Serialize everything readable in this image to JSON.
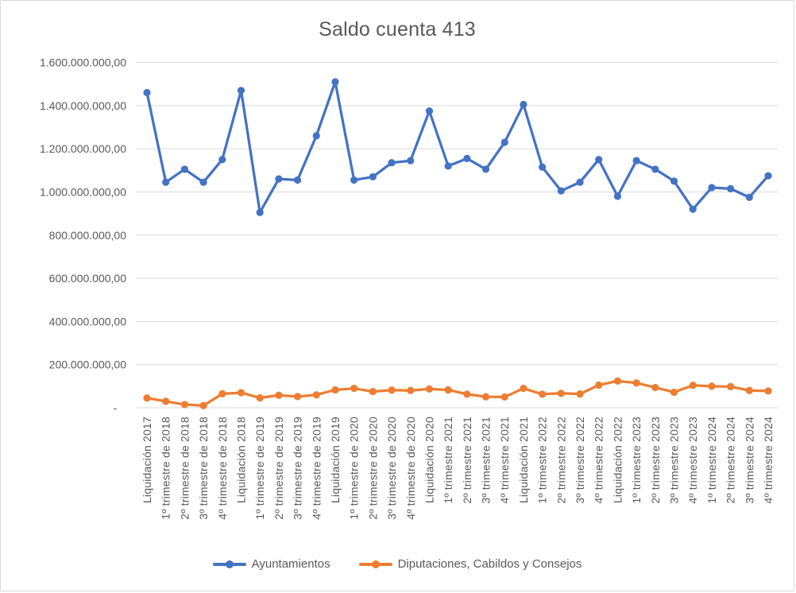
{
  "chart_data": {
    "type": "line",
    "title": "Saldo cuenta 413",
    "xlabel": "",
    "ylabel": "",
    "grid": true,
    "legend_position": "bottom",
    "x_label_rotation": 90,
    "ylim": [
      0,
      1600000000
    ],
    "y_ticks": [
      {
        "value": 0,
        "label": "-   "
      },
      {
        "value": 200000000,
        "label": "200.000.000,00"
      },
      {
        "value": 400000000,
        "label": "400.000.000,00"
      },
      {
        "value": 600000000,
        "label": "600.000.000,00"
      },
      {
        "value": 800000000,
        "label": "800.000.000,00"
      },
      {
        "value": 1000000000,
        "label": "1.000.000.000,00"
      },
      {
        "value": 1200000000,
        "label": "1.200.000.000,00"
      },
      {
        "value": 1400000000,
        "label": "1.400.000.000,00"
      },
      {
        "value": 1600000000,
        "label": "1.600.000.000,00"
      }
    ],
    "categories": [
      "Liquidación 2017",
      "1º trimestre de 2018",
      "2º trimestre de 2018",
      "3º trimestre de 2018",
      "4º trimestre de 2018",
      "Liquidación 2018",
      "1º trimestre de 2019",
      "2º trimestre de 2019",
      "3º trimestre de 2019",
      "4º trimestre de 2019",
      "Liquidación 2019",
      "1º trimestre de 2020",
      "2º trimestre de 2020",
      "3º trimestre de 2020",
      "4º trimestre de 2020",
      "Liquidación 2020",
      "1º trimestre 2021",
      "2º trimestre 2021",
      "3º trimestre 2021",
      "4º trimestre 2021",
      "Liquidación 2021",
      "1º trimestre 2022",
      "2º trimestre 2022",
      "3º trimestre 2022",
      "4º trimestre 2022",
      "Liquidación 2022",
      "1º trimestre 2023",
      "2º trimestre 2023",
      "3º trimestre 2023",
      "4º trimestre 2023",
      "1º trimestre 2024",
      "2º trimestre 2024",
      "3º trimestre 2024",
      "4º trimestre 2024"
    ],
    "series": [
      {
        "name": "Ayuntamientos",
        "color": "#4472C4",
        "values": [
          1460000000,
          1045000000,
          1105000000,
          1045000000,
          1150000000,
          1470000000,
          905000000,
          1060000000,
          1055000000,
          1260000000,
          1510000000,
          1055000000,
          1070000000,
          1135000000,
          1145000000,
          1375000000,
          1120000000,
          1155000000,
          1105000000,
          1230000000,
          1405000000,
          1115000000,
          1005000000,
          1045000000,
          1150000000,
          980000000,
          1145000000,
          1105000000,
          1050000000,
          920000000,
          1020000000,
          1015000000,
          975000000,
          1075000000
        ]
      },
      {
        "name": "Diputaciones, Cabildos y Consejos",
        "color": "#ED7D31",
        "values": [
          45000000,
          30000000,
          15000000,
          10000000,
          65000000,
          70000000,
          46000000,
          58000000,
          52000000,
          60000000,
          83000000,
          90000000,
          75000000,
          82000000,
          80000000,
          87000000,
          83000000,
          63000000,
          51000000,
          50000000,
          90000000,
          63000000,
          67000000,
          64000000,
          105000000,
          124000000,
          115000000,
          94000000,
          72000000,
          104000000,
          100000000,
          98000000,
          80000000,
          78000000
        ]
      }
    ]
  },
  "colors": {
    "text": "#595959",
    "gridline": "#D9D9D9",
    "background": "#FFFFFF",
    "border": "#D9D9D9",
    "series_blue": "#4472C4",
    "series_orange": "#ED7D31"
  }
}
